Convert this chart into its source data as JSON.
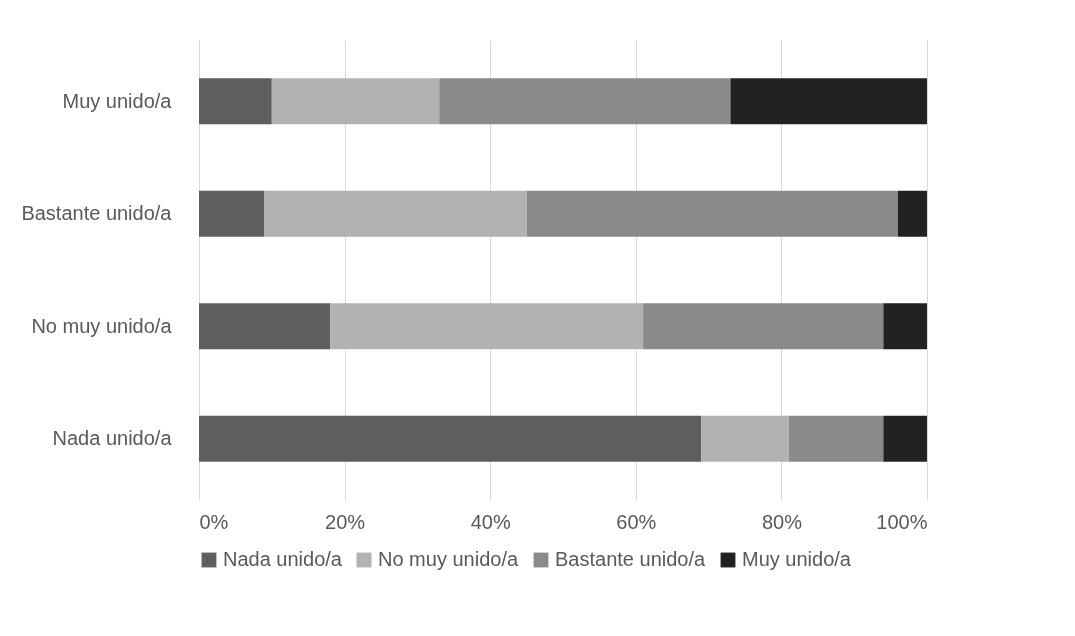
{
  "chart_data": {
    "type": "bar",
    "orientation": "horizontal",
    "stacked": true,
    "categories": [
      "Muy unido/a",
      "Bastante unido/a",
      "No muy unido/a",
      "Nada unido/a"
    ],
    "series": [
      {
        "name": "Nada unido/a",
        "color": "#5e5e5e",
        "values": [
          10,
          9,
          18,
          69
        ]
      },
      {
        "name": "No muy unido/a",
        "color": "#b2b2b2",
        "values": [
          23,
          36,
          43,
          12
        ]
      },
      {
        "name": "Bastante unido/a",
        "color": "#8a8a8a",
        "values": [
          40,
          51,
          33,
          13
        ]
      },
      {
        "name": "Muy unido/a",
        "color": "#222222",
        "values": [
          27,
          4,
          6,
          6
        ]
      }
    ],
    "xlim": [
      0,
      100
    ],
    "xticks": [
      {
        "value": 0,
        "label": "0%"
      },
      {
        "value": 20,
        "label": "20%"
      },
      {
        "value": 40,
        "label": "40%"
      },
      {
        "value": 60,
        "label": "60%"
      },
      {
        "value": 80,
        "label": "80%"
      },
      {
        "value": 100,
        "label": "100%"
      }
    ],
    "grid": "x",
    "legend": "bottom"
  }
}
